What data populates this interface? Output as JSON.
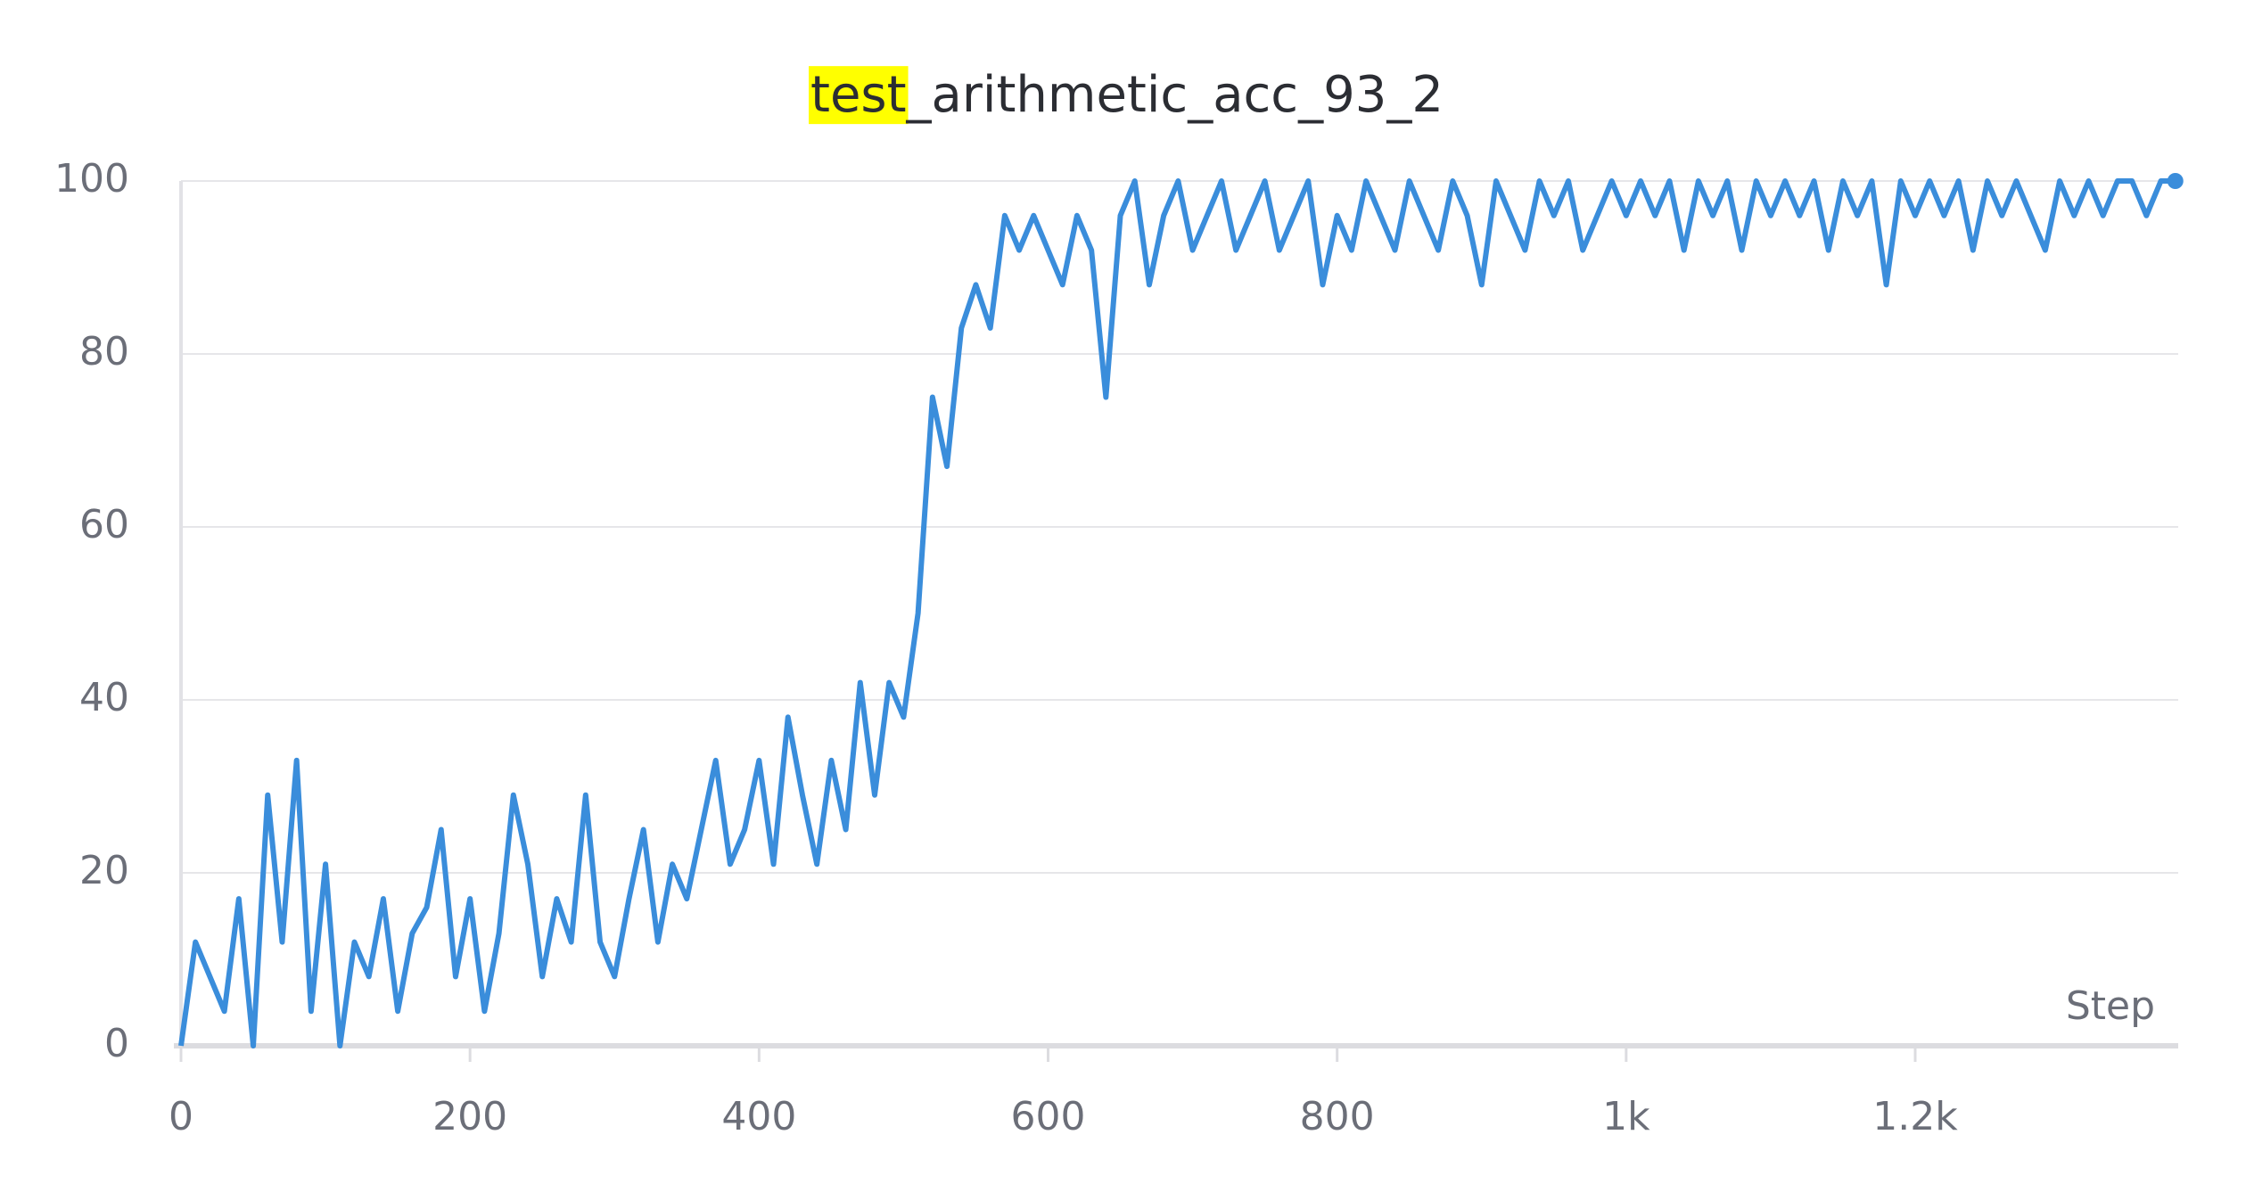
{
  "chart_data": {
    "type": "line",
    "title": "test_arithmetic_acc_93_2",
    "x_label": "Step",
    "x": [
      0,
      10,
      20,
      30,
      40,
      50,
      60,
      70,
      80,
      90,
      100,
      110,
      120,
      130,
      140,
      150,
      160,
      170,
      180,
      190,
      200,
      210,
      220,
      230,
      240,
      250,
      260,
      270,
      280,
      290,
      300,
      310,
      320,
      330,
      340,
      350,
      360,
      370,
      380,
      390,
      400,
      410,
      420,
      430,
      440,
      450,
      460,
      470,
      480,
      490,
      500,
      510,
      520,
      530,
      540,
      550,
      560,
      570,
      580,
      590,
      600,
      610,
      620,
      630,
      640,
      650,
      660,
      670,
      680,
      690,
      700,
      710,
      720,
      730,
      740,
      750,
      760,
      770,
      780,
      790,
      800,
      810,
      820,
      830,
      840,
      850,
      860,
      870,
      880,
      890,
      900,
      910,
      920,
      930,
      940,
      950,
      960,
      970,
      980,
      990,
      1000,
      1010,
      1020,
      1030,
      1040,
      1050,
      1060,
      1070,
      1080,
      1090,
      1100,
      1110,
      1120,
      1130,
      1140,
      1150,
      1160,
      1170,
      1180,
      1190,
      1200,
      1210,
      1220,
      1230,
      1240,
      1250,
      1260,
      1270,
      1280,
      1290,
      1300,
      1310,
      1320,
      1330,
      1340,
      1350,
      1360,
      1370,
      1380
    ],
    "series": [
      {
        "name": "test_arithmetic_acc_93_2",
        "color": "#3a8ddb",
        "values": [
          0,
          12,
          8,
          4,
          17,
          0,
          29,
          12,
          33,
          4,
          21,
          0,
          12,
          8,
          17,
          4,
          13,
          16,
          25,
          8,
          17,
          4,
          13,
          29,
          21,
          8,
          17,
          12,
          29,
          12,
          8,
          17,
          25,
          12,
          21,
          17,
          25,
          33,
          21,
          25,
          33,
          21,
          38,
          29,
          21,
          33,
          25,
          42,
          29,
          42,
          38,
          50,
          75,
          67,
          83,
          88,
          83,
          96,
          92,
          96,
          92,
          88,
          96,
          92,
          75,
          96,
          100,
          88,
          96,
          100,
          92,
          96,
          100,
          92,
          96,
          100,
          92,
          96,
          100,
          88,
          96,
          92,
          100,
          96,
          92,
          100,
          96,
          92,
          100,
          96,
          88,
          100,
          96,
          92,
          100,
          96,
          100,
          92,
          96,
          100,
          96,
          100,
          96,
          100,
          92,
          100,
          96,
          100,
          92,
          100,
          96,
          100,
          96,
          100,
          92,
          100,
          96,
          100,
          88,
          100,
          96,
          100,
          96,
          100,
          92,
          100,
          96,
          100,
          96,
          92,
          100,
          96,
          100,
          96,
          100,
          100,
          96,
          100,
          100
        ]
      }
    ],
    "xlim": [
      0,
      1382
    ],
    "ylim": [
      0,
      100
    ],
    "xticks": [
      0,
      200,
      400,
      600,
      800,
      {
        "value": 1000,
        "label": "1k"
      },
      {
        "value": 1200,
        "label": "1.2k"
      }
    ],
    "yticks": [
      0,
      20,
      40,
      60,
      80,
      100
    ],
    "grid": true
  }
}
